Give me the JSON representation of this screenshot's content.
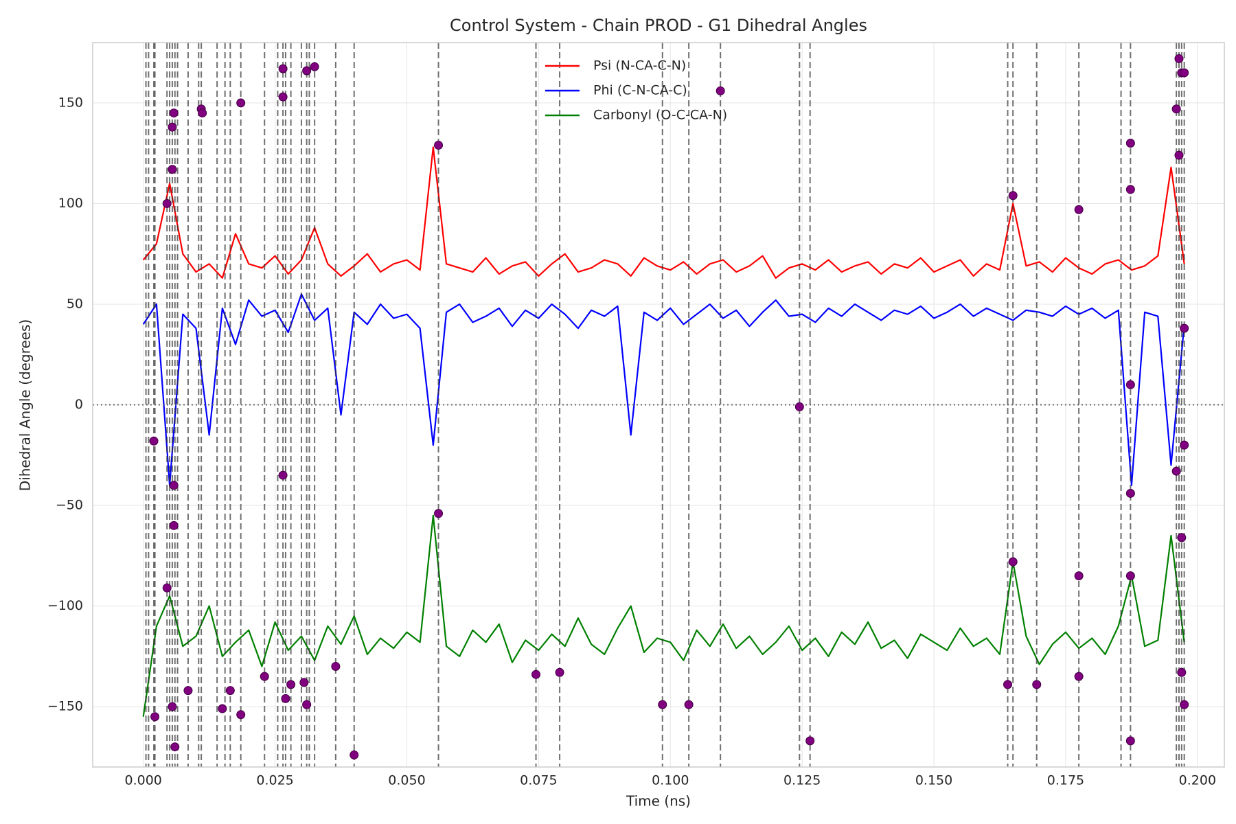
{
  "chart_data": {
    "type": "line",
    "title": "Control System - Chain PROD - G1 Dihedral Angles",
    "xlabel": "Time (ns)",
    "ylabel": "Dihedral Angle (degrees)",
    "xlim": [
      -0.0096,
      0.2051
    ],
    "ylim": [
      -180,
      180
    ],
    "xticks": [
      {
        "value": 0,
        "label": "0.000"
      },
      {
        "value": 0.025,
        "label": "0.025"
      },
      {
        "value": 0.05,
        "label": "0.050"
      },
      {
        "value": 0.075,
        "label": "0.075"
      },
      {
        "value": 0.1,
        "label": "0.100"
      },
      {
        "value": 0.125,
        "label": "0.125"
      },
      {
        "value": 0.15,
        "label": "0.150"
      },
      {
        "value": 0.175,
        "label": "0.175"
      },
      {
        "value": 0.2,
        "label": "0.200"
      }
    ],
    "yticks": [
      {
        "value": -150,
        "label": "−150"
      },
      {
        "value": -100,
        "label": "−100"
      },
      {
        "value": -50,
        "label": "−50"
      },
      0,
      50,
      100,
      150
    ],
    "grid": true,
    "legend": "upper center",
    "reference_line": 0,
    "x": [
      0,
      0.0025,
      0.005,
      0.0075,
      0.01,
      0.0125,
      0.015,
      0.0175,
      0.02,
      0.0225,
      0.025,
      0.0275,
      0.03,
      0.0325,
      0.035,
      0.0375,
      0.04,
      0.0425,
      0.045,
      0.0475,
      0.05,
      0.0525,
      0.055,
      0.0575,
      0.06,
      0.0625,
      0.065,
      0.0675,
      0.07,
      0.0725,
      0.075,
      0.0775,
      0.08,
      0.0825,
      0.085,
      0.0875,
      0.09,
      0.0925,
      0.095,
      0.0975,
      0.1,
      0.1025,
      0.105,
      0.1075,
      0.11,
      0.1125,
      0.115,
      0.1175,
      0.12,
      0.1225,
      0.125,
      0.1275,
      0.13,
      0.1325,
      0.135,
      0.1375,
      0.14,
      0.1425,
      0.145,
      0.1475,
      0.15,
      0.1525,
      0.155,
      0.1575,
      0.16,
      0.1625,
      0.165,
      0.1675,
      0.17,
      0.1725,
      0.175,
      0.1775,
      0.18,
      0.1825,
      0.185,
      0.1875,
      0.19,
      0.1925,
      0.195,
      0.1975
    ],
    "series": [
      {
        "name": "Psi (N-CA-C-N)",
        "color": "#ff0000",
        "values": [
          72,
          80,
          110,
          75,
          66,
          70,
          63,
          85,
          70,
          68,
          74,
          65,
          72,
          88,
          70,
          64,
          69,
          75,
          66,
          70,
          72,
          67,
          128,
          70,
          68,
          66,
          73,
          65,
          69,
          71,
          64,
          70,
          75,
          66,
          68,
          72,
          70,
          64,
          73,
          69,
          67,
          71,
          65,
          70,
          72,
          66,
          69,
          74,
          63,
          68,
          70,
          67,
          72,
          66,
          69,
          71,
          65,
          70,
          68,
          73,
          66,
          69,
          72,
          64,
          70,
          67,
          100,
          69,
          71,
          66,
          73,
          68,
          65,
          70,
          72,
          67,
          69,
          74,
          118,
          70
        ]
      },
      {
        "name": "Phi (C-N-CA-C)",
        "color": "#0000ff",
        "values": [
          40,
          50,
          -40,
          45,
          38,
          -15,
          48,
          30,
          52,
          44,
          47,
          36,
          55,
          42,
          48,
          -5,
          46,
          40,
          50,
          43,
          45,
          38,
          -20,
          46,
          50,
          41,
          44,
          48,
          39,
          47,
          43,
          50,
          45,
          38,
          47,
          44,
          49,
          -15,
          46,
          42,
          48,
          40,
          45,
          50,
          43,
          47,
          39,
          46,
          52,
          44,
          45,
          41,
          48,
          44,
          50,
          46,
          42,
          47,
          45,
          49,
          43,
          46,
          50,
          44,
          48,
          45,
          42,
          47,
          46,
          44,
          49,
          45,
          48,
          43,
          47,
          -40,
          46,
          44,
          -30,
          40
        ]
      },
      {
        "name": "Carbonyl (O-C-CA-N)",
        "color": "#008000",
        "values": [
          -155,
          -110,
          -95,
          -120,
          -115,
          -100,
          -125,
          -118,
          -112,
          -130,
          -108,
          -122,
          -115,
          -127,
          -110,
          -119,
          -105,
          -124,
          -116,
          -121,
          -113,
          -118,
          -55,
          -120,
          -125,
          -112,
          -118,
          -109,
          -128,
          -117,
          -122,
          -114,
          -120,
          -106,
          -119,
          -124,
          -111,
          -100,
          -123,
          -116,
          -118,
          -127,
          -112,
          -120,
          -109,
          -121,
          -115,
          -124,
          -118,
          -110,
          -122,
          -116,
          -125,
          -113,
          -119,
          -108,
          -121,
          -117,
          -126,
          -114,
          -118,
          -122,
          -111,
          -120,
          -116,
          -124,
          -78,
          -115,
          -129,
          -119,
          -113,
          -121,
          -116,
          -124,
          -110,
          -85,
          -120,
          -117,
          -65,
          -118
        ]
      }
    ],
    "transitions": {
      "color": "#800080",
      "x": [
        0.002,
        0.0022,
        0.0045,
        0.0045,
        0.0055,
        0.0058,
        0.0055,
        0.0058,
        0.0058,
        0.0055,
        0.006,
        0.0085,
        0.011,
        0.0112,
        0.015,
        0.0165,
        0.0185,
        0.0185,
        0.023,
        0.0265,
        0.0265,
        0.0265,
        0.027,
        0.028,
        0.0305,
        0.031,
        0.031,
        0.0325,
        0.0365,
        0.04,
        0.056,
        0.056,
        0.0745,
        0.079,
        0.0985,
        0.1035,
        0.1095,
        0.1245,
        0.1265,
        0.164,
        0.165,
        0.165,
        0.1695,
        0.1775,
        0.1775,
        0.1775,
        0.1873,
        0.1873,
        0.1873,
        0.1873,
        0.1873,
        0.1873,
        0.196,
        0.196,
        0.1965,
        0.1965,
        0.197,
        0.1975,
        0.1975,
        0.1975,
        0.1975,
        0.197,
        0.197
      ],
      "y": [
        -18,
        -155,
        100,
        -91,
        138,
        145,
        117,
        -40,
        -60,
        -150,
        -170,
        -142,
        147,
        145,
        -151,
        -142,
        150,
        -154,
        -135,
        167,
        153,
        -35,
        -146,
        -139,
        -138,
        166,
        -149,
        168,
        -130,
        -174,
        129,
        -54,
        -134,
        -133,
        -149,
        -149,
        156,
        -1,
        -167,
        -139,
        104,
        -78,
        -139,
        97,
        -85,
        -135,
        130,
        107,
        10,
        -44,
        -85,
        -167,
        147,
        -33,
        172,
        124,
        165,
        165,
        38,
        -20,
        -149,
        -66,
        -133
      ]
    },
    "event_times": [
      0.0005,
      0.001,
      0.002,
      0.0022,
      0.0045,
      0.005,
      0.0055,
      0.006,
      0.0065,
      0.0085,
      0.0105,
      0.011,
      0.014,
      0.0155,
      0.0165,
      0.0185,
      0.023,
      0.0255,
      0.0265,
      0.027,
      0.028,
      0.03,
      0.031,
      0.0315,
      0.0325,
      0.0365,
      0.04,
      0.056,
      0.0745,
      0.079,
      0.0985,
      0.1035,
      0.1095,
      0.1245,
      0.1265,
      0.164,
      0.165,
      0.1695,
      0.1775,
      0.1855,
      0.1873,
      0.196,
      0.1965,
      0.197,
      0.1975
    ]
  }
}
